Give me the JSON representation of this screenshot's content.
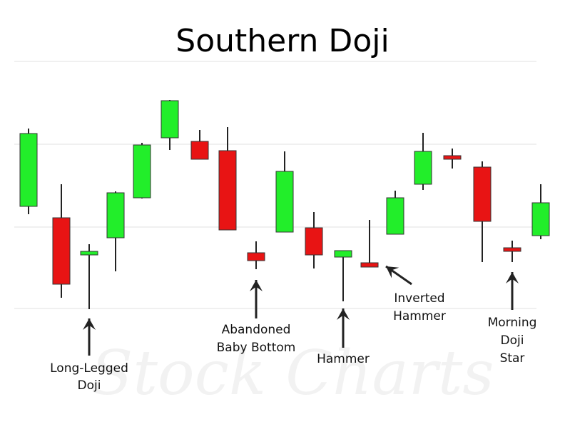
{
  "header": {
    "title": "Southern Doji"
  },
  "watermark": "Stock Charts",
  "annotations": [
    {
      "lines": [
        "Long-Legged",
        "Doji"
      ]
    },
    {
      "lines": [
        "Abandoned",
        "Baby Bottom"
      ]
    },
    {
      "lines": [
        "Hammer"
      ]
    },
    {
      "lines": [
        "Inverted",
        "Hammer"
      ]
    },
    {
      "lines": [
        "Morning",
        "Doji",
        "Star"
      ]
    }
  ]
}
